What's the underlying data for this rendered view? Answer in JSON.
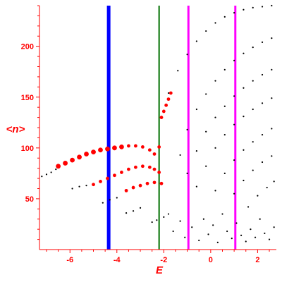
{
  "chart_data": {
    "type": "scatter",
    "title": "",
    "xlabel": "E",
    "ylabel": "<n>",
    "xlim": [
      -7.3,
      2.8
    ],
    "ylim": [
      0,
      240
    ],
    "x_ticks": [
      -6,
      -4,
      -2,
      0,
      2
    ],
    "x_tick_labels": [
      "-6",
      "-4",
      "-2",
      "0",
      "2"
    ],
    "y_ticks": [
      50,
      100,
      150,
      200
    ],
    "y_tick_labels": [
      "50",
      "100",
      "150",
      "200"
    ],
    "grid": false,
    "legend": false,
    "colors": {
      "axis": "#ff0000",
      "red_points": "#ff0000",
      "black_points": "#000000",
      "line_blue": "#0000ff",
      "line_green": "#007000",
      "line_magenta": "#ff00ff"
    },
    "vertical_lines": [
      {
        "x": -4.35,
        "color": "#0000ff"
      },
      {
        "x": -2.2,
        "color": "#007000"
      },
      {
        "x": -0.95,
        "color": "#ff00ff"
      },
      {
        "x": 1.05,
        "color": "#ff00ff"
      }
    ],
    "series": [
      {
        "color": "#ff0000",
        "points": [
          {
            "x": -6.5,
            "y": 82
          },
          {
            "x": -6.2,
            "y": 85
          },
          {
            "x": -5.9,
            "y": 88
          },
          {
            "x": -5.6,
            "y": 91
          },
          {
            "x": -5.3,
            "y": 94
          },
          {
            "x": -5.0,
            "y": 96
          },
          {
            "x": -4.7,
            "y": 98
          },
          {
            "x": -4.4,
            "y": 99
          },
          {
            "x": -4.1,
            "y": 100
          },
          {
            "x": -3.8,
            "y": 101
          },
          {
            "x": -3.5,
            "y": 102
          },
          {
            "x": -3.2,
            "y": 102
          },
          {
            "x": -2.9,
            "y": 101
          },
          {
            "x": -2.6,
            "y": 98
          },
          {
            "x": -2.4,
            "y": 94
          },
          {
            "x": -5.0,
            "y": 64
          },
          {
            "x": -4.7,
            "y": 67
          },
          {
            "x": -4.4,
            "y": 70
          },
          {
            "x": -4.1,
            "y": 73
          },
          {
            "x": -3.8,
            "y": 76
          },
          {
            "x": -3.5,
            "y": 79
          },
          {
            "x": -3.2,
            "y": 81
          },
          {
            "x": -2.9,
            "y": 82
          },
          {
            "x": -2.6,
            "y": 81
          },
          {
            "x": -2.4,
            "y": 79
          },
          {
            "x": -2.2,
            "y": 76
          },
          {
            "x": -3.6,
            "y": 58
          },
          {
            "x": -3.3,
            "y": 61
          },
          {
            "x": -3.0,
            "y": 63
          },
          {
            "x": -2.7,
            "y": 65
          },
          {
            "x": -2.4,
            "y": 66
          },
          {
            "x": -2.1,
            "y": 65
          },
          {
            "x": -2.2,
            "y": 101
          },
          {
            "x": -2.1,
            "y": 130
          },
          {
            "x": -2.0,
            "y": 136
          },
          {
            "x": -1.9,
            "y": 142
          },
          {
            "x": -1.8,
            "y": 148
          },
          {
            "x": -1.7,
            "y": 154
          }
        ]
      },
      {
        "color": "#000000",
        "points": [
          {
            "x": -7.2,
            "y": 72
          },
          {
            "x": -7.0,
            "y": 74
          },
          {
            "x": -6.8,
            "y": 76
          },
          {
            "x": -6.6,
            "y": 79
          },
          {
            "x": -5.9,
            "y": 60
          },
          {
            "x": -5.6,
            "y": 62
          },
          {
            "x": -5.3,
            "y": 63
          },
          {
            "x": -4.6,
            "y": 46
          },
          {
            "x": -4.3,
            "y": 49
          },
          {
            "x": -4.0,
            "y": 51
          },
          {
            "x": -3.6,
            "y": 36
          },
          {
            "x": -3.3,
            "y": 38
          },
          {
            "x": -3.0,
            "y": 41
          },
          {
            "x": -2.5,
            "y": 27
          },
          {
            "x": -2.3,
            "y": 29
          },
          {
            "x": -2.0,
            "y": 32
          },
          {
            "x": -1.8,
            "y": 154
          },
          {
            "x": -1.4,
            "y": 176
          },
          {
            "x": -1.0,
            "y": 192
          },
          {
            "x": -0.6,
            "y": 205
          },
          {
            "x": -0.2,
            "y": 215
          },
          {
            "x": 0.2,
            "y": 223
          },
          {
            "x": 0.6,
            "y": 229
          },
          {
            "x": 1.0,
            "y": 233
          },
          {
            "x": 1.4,
            "y": 236
          },
          {
            "x": 1.8,
            "y": 238
          },
          {
            "x": 2.2,
            "y": 239
          },
          {
            "x": 2.6,
            "y": 240
          },
          {
            "x": -1.3,
            "y": 93
          },
          {
            "x": -1.0,
            "y": 118
          },
          {
            "x": -0.6,
            "y": 138
          },
          {
            "x": -0.2,
            "y": 153
          },
          {
            "x": 0.2,
            "y": 166
          },
          {
            "x": 0.6,
            "y": 177
          },
          {
            "x": 1.0,
            "y": 186
          },
          {
            "x": 1.4,
            "y": 193
          },
          {
            "x": 1.8,
            "y": 199
          },
          {
            "x": 2.2,
            "y": 204
          },
          {
            "x": 2.6,
            "y": 208
          },
          {
            "x": -1.0,
            "y": 75
          },
          {
            "x": -0.6,
            "y": 97
          },
          {
            "x": -0.2,
            "y": 116
          },
          {
            "x": 0.2,
            "y": 130
          },
          {
            "x": 0.6,
            "y": 141
          },
          {
            "x": 1.0,
            "y": 151
          },
          {
            "x": 1.4,
            "y": 159
          },
          {
            "x": 1.8,
            "y": 166
          },
          {
            "x": 2.2,
            "y": 172
          },
          {
            "x": 2.6,
            "y": 177
          },
          {
            "x": -0.6,
            "y": 62
          },
          {
            "x": -0.2,
            "y": 82
          },
          {
            "x": 0.2,
            "y": 100
          },
          {
            "x": 0.6,
            "y": 113
          },
          {
            "x": 1.0,
            "y": 123
          },
          {
            "x": 1.4,
            "y": 131
          },
          {
            "x": 1.8,
            "y": 138
          },
          {
            "x": 2.2,
            "y": 144
          },
          {
            "x": 2.6,
            "y": 149
          },
          {
            "x": 0.2,
            "y": 58
          },
          {
            "x": 0.6,
            "y": 75
          },
          {
            "x": 1.0,
            "y": 88
          },
          {
            "x": 1.4,
            "y": 98
          },
          {
            "x": 1.8,
            "y": 106
          },
          {
            "x": 2.2,
            "y": 113
          },
          {
            "x": 2.6,
            "y": 119
          },
          {
            "x": 1.0,
            "y": 55
          },
          {
            "x": 1.4,
            "y": 68
          },
          {
            "x": 1.8,
            "y": 78
          },
          {
            "x": 2.2,
            "y": 86
          },
          {
            "x": 2.6,
            "y": 92
          },
          {
            "x": 1.6,
            "y": 42
          },
          {
            "x": 2.0,
            "y": 53
          },
          {
            "x": 2.4,
            "y": 61
          },
          {
            "x": 2.7,
            "y": 67
          },
          {
            "x": -1.8,
            "y": 35
          },
          {
            "x": -1.6,
            "y": 18
          },
          {
            "x": -1.3,
            "y": 28
          },
          {
            "x": -1.1,
            "y": 12
          },
          {
            "x": -0.8,
            "y": 22
          },
          {
            "x": -0.5,
            "y": 9
          },
          {
            "x": -0.3,
            "y": 30
          },
          {
            "x": -0.1,
            "y": 15
          },
          {
            "x": 0.1,
            "y": 24
          },
          {
            "x": 0.3,
            "y": 7
          },
          {
            "x": 0.5,
            "y": 35
          },
          {
            "x": 0.7,
            "y": 18
          },
          {
            "x": 0.9,
            "y": 11
          },
          {
            "x": 1.1,
            "y": 26
          },
          {
            "x": 1.3,
            "y": 14
          },
          {
            "x": 1.5,
            "y": 8
          },
          {
            "x": 1.7,
            "y": 20
          },
          {
            "x": 1.9,
            "y": 12
          },
          {
            "x": 2.1,
            "y": 30
          },
          {
            "x": 2.3,
            "y": 16
          },
          {
            "x": 2.5,
            "y": 10
          },
          {
            "x": 2.7,
            "y": 22
          }
        ]
      }
    ]
  }
}
